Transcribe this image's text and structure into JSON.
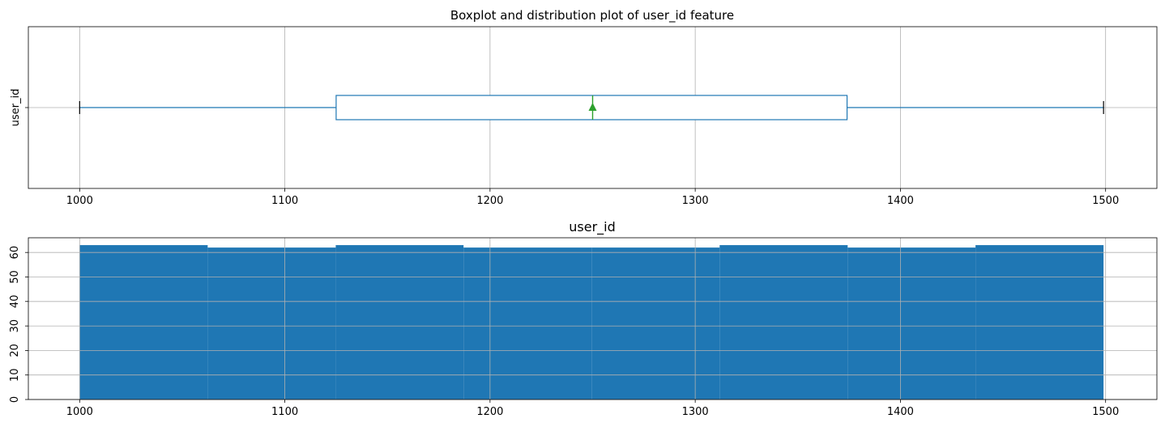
{
  "chart_data": [
    {
      "type": "box",
      "title": "Boxplot and distribution plot of user_id feature",
      "xlabel": "",
      "ylabel": "user_id",
      "xlim": [
        975,
        1525
      ],
      "x_ticks": [
        1000,
        1100,
        1200,
        1300,
        1400,
        1500
      ],
      "grid": true,
      "orientation": "horizontal",
      "box": {
        "category": "user_id",
        "whisker_low": 1000,
        "q1": 1125,
        "median": 1250,
        "mean": 1250,
        "q3": 1374,
        "whisker_high": 1499
      },
      "colors": {
        "box": "#1f77b4",
        "median": "#2ca02c",
        "mean": "#2ca02c",
        "caps": "#000000"
      }
    },
    {
      "type": "histogram",
      "title": "user_id",
      "xlabel": "",
      "ylabel": "",
      "xlim": [
        975,
        1525
      ],
      "ylim": [
        0,
        66
      ],
      "x_ticks": [
        1000,
        1100,
        1200,
        1300,
        1400,
        1500
      ],
      "y_ticks": [
        0,
        10,
        20,
        30,
        40,
        50,
        60
      ],
      "grid": true,
      "bins": [
        {
          "start": 1000,
          "end": 1062.4,
          "count": 63
        },
        {
          "start": 1062.4,
          "end": 1124.8,
          "count": 62
        },
        {
          "start": 1124.8,
          "end": 1187.1,
          "count": 63
        },
        {
          "start": 1187.1,
          "end": 1249.5,
          "count": 62
        },
        {
          "start": 1249.5,
          "end": 1311.9,
          "count": 62
        },
        {
          "start": 1311.9,
          "end": 1374.3,
          "count": 63
        },
        {
          "start": 1374.3,
          "end": 1436.6,
          "count": 62
        },
        {
          "start": 1436.6,
          "end": 1499,
          "count": 63
        }
      ],
      "colors": {
        "bar": "#1f77b4"
      }
    }
  ]
}
